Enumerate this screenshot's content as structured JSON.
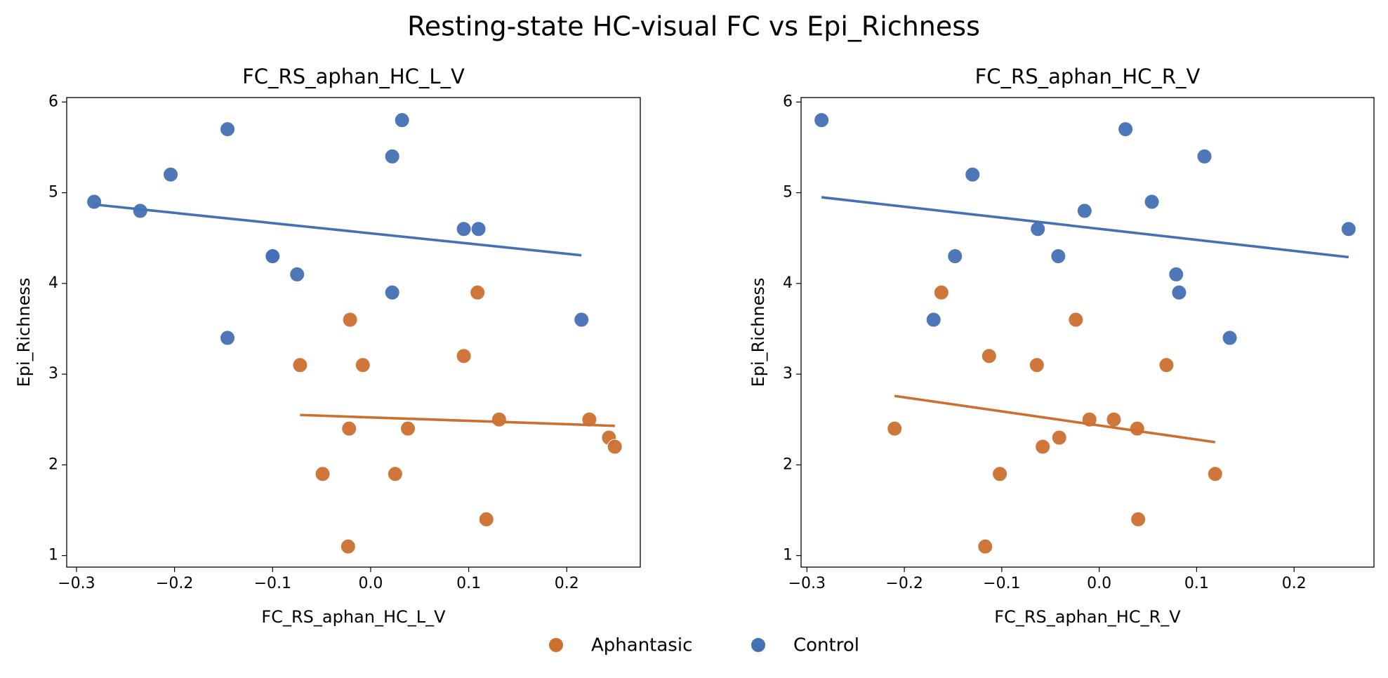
{
  "title": "Resting-state HC-visual FC vs Epi_Richness",
  "chart_data": [
    {
      "type": "scatter",
      "title": "FC_RS_aphan_HC_L_V",
      "xlabel": "FC_RS_aphan_HC_L_V",
      "ylabel": "Epi_Richness",
      "xlim": [
        -0.31,
        0.275
      ],
      "ylim": [
        0.873,
        6.049
      ],
      "xticks": [
        {
          "value": -0.3,
          "label": "−0.3"
        },
        {
          "value": -0.2,
          "label": "−0.2"
        },
        {
          "value": -0.1,
          "label": "−0.1"
        },
        {
          "value": 0,
          "label": "0.0"
        },
        {
          "value": 0.1,
          "label": "0.1"
        },
        {
          "value": 0.2,
          "label": "0.2"
        }
      ],
      "yticks": [
        1,
        2,
        3,
        4,
        5,
        6
      ],
      "series": [
        {
          "name": "Aphantasic",
          "color": "#cc6f2f",
          "x": [
            -0.072,
            -0.021,
            -0.008,
            -0.022,
            -0.049,
            -0.023,
            0.025,
            0.038,
            0.095,
            0.109,
            0.118,
            0.131,
            0.223,
            0.243,
            0.249
          ],
          "values": [
            3.1,
            3.6,
            3.1,
            2.4,
            1.9,
            1.1,
            1.9,
            2.4,
            3.2,
            3.9,
            1.4,
            2.5,
            2.5,
            2.3,
            2.2
          ],
          "fit": {
            "x": [
              -0.072,
              0.249
            ],
            "values": [
              2.55,
              2.43
            ]
          }
        },
        {
          "name": "Control",
          "color": "#4470b4",
          "x": [
            -0.282,
            -0.235,
            -0.204,
            -0.146,
            -0.146,
            -0.1,
            -0.1,
            -0.075,
            0.022,
            0.032,
            0.022,
            0.095,
            0.11,
            0.215
          ],
          "values": [
            4.9,
            4.8,
            5.2,
            5.7,
            3.4,
            4.3,
            4.3,
            4.1,
            5.4,
            5.8,
            3.9,
            4.6,
            4.6,
            3.6
          ],
          "fit": {
            "x": [
              -0.282,
              0.215
            ],
            "values": [
              4.87,
              4.31
            ]
          }
        }
      ]
    },
    {
      "type": "scatter",
      "title": "FC_RS_aphan_HC_R_V",
      "xlabel": "FC_RS_aphan_HC_R_V",
      "ylabel": "Epi_Richness",
      "xlim": [
        -0.306,
        0.282
      ],
      "ylim": [
        0.873,
        6.049
      ],
      "xticks": [
        {
          "value": -0.3,
          "label": "−0.3"
        },
        {
          "value": -0.2,
          "label": "−0.2"
        },
        {
          "value": -0.1,
          "label": "−0.1"
        },
        {
          "value": 0,
          "label": "0.0"
        },
        {
          "value": 0.1,
          "label": "0.1"
        },
        {
          "value": 0.2,
          "label": "0.2"
        }
      ],
      "yticks": [
        1,
        2,
        3,
        4,
        5,
        6
      ],
      "series": [
        {
          "name": "Aphantasic",
          "color": "#cc6f2f",
          "x": [
            -0.162,
            -0.21,
            -0.113,
            -0.064,
            -0.024,
            -0.102,
            -0.117,
            -0.058,
            -0.041,
            -0.01,
            0.015,
            0.039,
            0.069,
            0.04,
            0.119
          ],
          "values": [
            3.9,
            2.4,
            3.2,
            3.1,
            3.6,
            1.9,
            1.1,
            2.2,
            2.3,
            2.5,
            2.5,
            2.4,
            3.1,
            1.4,
            1.9
          ],
          "fit": {
            "x": [
              -0.21,
              0.119
            ],
            "values": [
              2.76,
              2.25
            ]
          }
        },
        {
          "name": "Control",
          "color": "#4470b4",
          "x": [
            -0.285,
            -0.13,
            -0.148,
            -0.17,
            -0.063,
            -0.015,
            -0.042,
            0.027,
            0.054,
            0.108,
            0.079,
            0.082,
            0.134,
            0.256
          ],
          "values": [
            5.8,
            5.2,
            4.3,
            3.6,
            4.6,
            4.8,
            4.3,
            5.7,
            4.9,
            5.4,
            4.1,
            3.9,
            3.4,
            4.6
          ],
          "fit": {
            "x": [
              -0.285,
              0.256
            ],
            "values": [
              4.95,
              4.29
            ]
          }
        }
      ]
    }
  ]
}
